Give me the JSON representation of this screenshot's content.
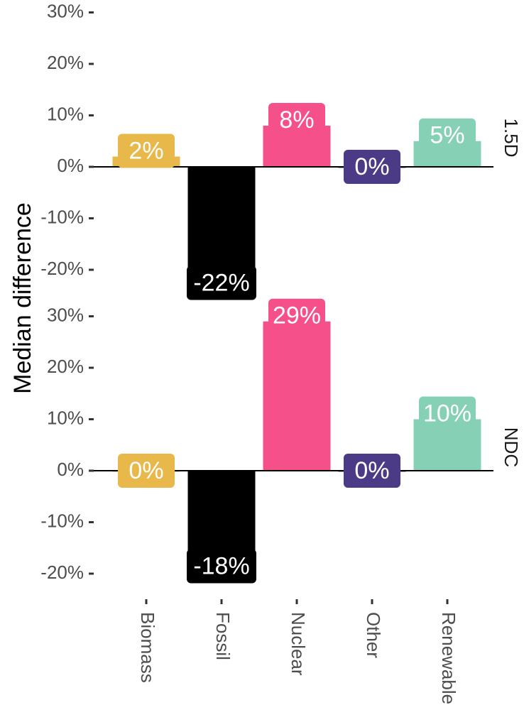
{
  "chart_data": {
    "type": "bar",
    "ylabel": "Median difference",
    "categories": [
      "Biomass",
      "Fossil",
      "Nuclear",
      "Other",
      "Renewable"
    ],
    "colors": {
      "Biomass": "#E8B84A",
      "Fossil": "#000000",
      "Nuclear": "#F5508A",
      "Other": "#4B3A86",
      "Renewable": "#86D0B6"
    },
    "panels": [
      {
        "facet": "1.5D",
        "values": [
          2,
          -22,
          8,
          0,
          5
        ],
        "labels": [
          "2%",
          "-22%",
          "8%",
          "0%",
          "5%"
        ],
        "ylim": [
          -24,
          31
        ],
        "yticks": [
          -20,
          -10,
          0,
          10,
          20,
          30
        ],
        "ytick_labels": [
          "-20%",
          "-10%",
          "0%",
          "10%",
          "20%",
          "30%"
        ]
      },
      {
        "facet": "NDC",
        "values": [
          0,
          -18,
          29,
          0,
          10
        ],
        "labels": [
          "0%",
          "-18%",
          "29%",
          "0%",
          "10%"
        ],
        "ylim": [
          -22,
          31
        ],
        "yticks": [
          -20,
          -10,
          0,
          10,
          20,
          30
        ],
        "ytick_labels": [
          "-20%",
          "-10%",
          "0%",
          "10%",
          "20%",
          "30%"
        ]
      }
    ]
  }
}
